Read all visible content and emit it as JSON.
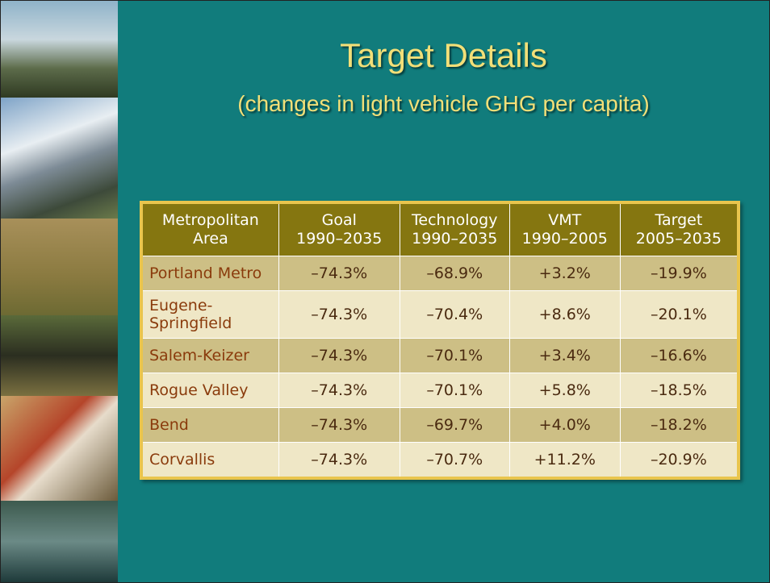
{
  "title": "Target Details",
  "subtitle": "(changes in light vehicle GHG per capita)",
  "table": {
    "header": [
      [
        "Metropolitan",
        "Area"
      ],
      [
        "Goal",
        "1990–2035"
      ],
      [
        "Technology",
        "1990–2035"
      ],
      [
        "VMT",
        "1990–2005"
      ],
      [
        "Target",
        "2005–2035"
      ]
    ],
    "rows": [
      [
        "Portland Metro",
        "–74.3%",
        "–68.9%",
        "+3.2%",
        "–19.9%"
      ],
      [
        "Eugene-Springfield",
        "–74.3%",
        "–70.4%",
        "+8.6%",
        "–20.1%"
      ],
      [
        "Salem-Keizer",
        "–74.3%",
        "–70.1%",
        "+3.4%",
        "–16.6%"
      ],
      [
        "Rogue Valley",
        "–74.3%",
        "–70.1%",
        "+5.8%",
        "–18.5%"
      ],
      [
        "Bend",
        "–74.3%",
        "–69.7%",
        "+4.0%",
        "–18.2%"
      ],
      [
        "Corvallis",
        "–74.3%",
        "–70.7%",
        "+11.2%",
        "–20.9%"
      ]
    ]
  }
}
